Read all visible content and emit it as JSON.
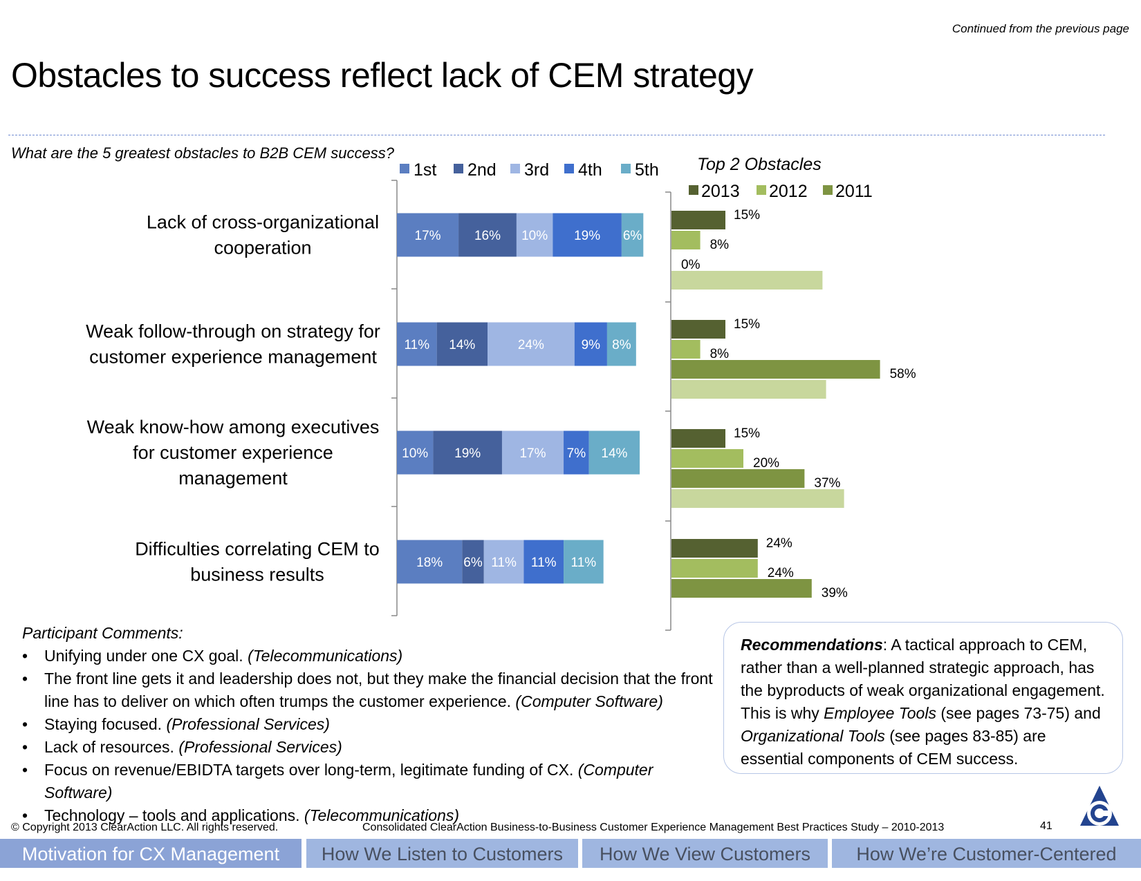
{
  "header": {
    "continued": "Continued from the previous page",
    "title": "Obstacles to success reflect lack of CEM strategy",
    "question": "What are the 5 greatest obstacles to B2B CEM success?"
  },
  "chart_data": [
    {
      "type": "bar",
      "orientation": "horizontal",
      "stacked": true,
      "categories": [
        "Lack of cross-organizational cooperation",
        "Weak follow-through on strategy for customer experience management",
        "Weak know-how among executives for customer experience management",
        "Difficulties correlating CEM to business results"
      ],
      "series": [
        {
          "name": "1st",
          "color": "#5b7ec1",
          "values": [
            17,
            11,
            10,
            18
          ]
        },
        {
          "name": "2nd",
          "color": "#45619c",
          "values": [
            16,
            14,
            19,
            6
          ]
        },
        {
          "name": "3rd",
          "color": "#9fb6e3",
          "values": [
            10,
            24,
            17,
            11
          ]
        },
        {
          "name": "4th",
          "color": "#3f6fcd",
          "values": [
            19,
            9,
            7,
            11
          ]
        },
        {
          "name": "5th",
          "color": "#6aadc8",
          "values": [
            6,
            8,
            14,
            11
          ]
        }
      ],
      "labels": [
        [
          "17%",
          "16%",
          "10%",
          "19%",
          "6%"
        ],
        [
          "11%",
          "14%",
          "24%",
          "9%",
          "8%"
        ],
        [
          "10%",
          "19%",
          "17%",
          "7%",
          "14%"
        ],
        [
          "18%",
          "6%",
          "11%",
          "11%",
          "11%"
        ]
      ],
      "label_lines": [
        [
          "Lack of cross-organizational",
          "cooperation"
        ],
        [
          "Weak follow-through on strategy for",
          "customer experience management"
        ],
        [
          "Weak know-how among executives",
          "for customer experience",
          "management"
        ],
        [
          "Difficulties correlating CEM to",
          "business results"
        ]
      ],
      "legend_position": "top"
    },
    {
      "type": "bar",
      "orientation": "horizontal",
      "title": "Top 2 Obstacles",
      "categories": [
        "Lack of cross-organizational cooperation",
        "Weak follow-through on strategy for customer experience management",
        "Weak know-how among executives for customer experience management",
        "Difficulties correlating CEM to business results"
      ],
      "series": [
        {
          "name": "2013",
          "color": "#556131",
          "values": [
            15,
            15,
            15,
            24
          ],
          "labels": [
            "15%",
            "15%",
            "15%",
            "24%"
          ]
        },
        {
          "name": "2012",
          "color": "#a3bd5f",
          "values": [
            8,
            8,
            20,
            24
          ],
          "labels": [
            "8%",
            "8%",
            "20%",
            "24%"
          ]
        },
        {
          "name": "2011",
          "color": "#7e9442",
          "values": [
            0,
            58,
            37,
            39
          ],
          "labels": [
            "0%",
            "58%",
            "37%",
            "39%"
          ]
        }
      ],
      "extra_bar": {
        "color": "#c8d79d",
        "values": [
          42,
          43,
          48,
          null
        ]
      },
      "legend_position": "top"
    }
  ],
  "comments": {
    "heading": "Participant Comments:",
    "items": [
      {
        "text": "Unifying under one CX goal. ",
        "source": "(Telecommunications)"
      },
      {
        "text": "The front line gets it and leadership does not, but they make the financial decision that the front line has to deliver on which often trumps the customer experience. ",
        "source": "(Computer Software)"
      },
      {
        "text": "Staying focused. ",
        "source": "(Professional Services)"
      },
      {
        "text": "Lack of resources. ",
        "source": "(Professional Services)"
      },
      {
        "text": "Focus on revenue/EBIDTA targets over long-term, legitimate funding of CX. ",
        "source": "(Computer Software)"
      },
      {
        "text": "Technology –  tools and applications. ",
        "source": "(Telecommunications)"
      }
    ]
  },
  "recommendations": {
    "label": "Recommendations",
    "part1": ": A tactical approach to CEM, rather than a well-planned strategic approach, has the byproducts of weak organizational engagement. This is why ",
    "employee_tools": "Employee Tools",
    "part2": " (see pages 73-75) and ",
    "organizational_tools": "Organizational Tools",
    "part3": " (see pages 83-85) are essential components of CEM success."
  },
  "footer": {
    "copyright": "© Copyright 2013 ClearAction LLC. All rights reserved.",
    "study": "Consolidated ClearAction Business-to-Business Customer Experience Management Best Practices Study – 2010-2013",
    "page": "41"
  },
  "nav": {
    "items": [
      {
        "label": "Motivation for CX Management"
      },
      {
        "label": "How We Listen to Customers"
      },
      {
        "label": "How We View Customers"
      },
      {
        "label": "How We’re Customer-Centered"
      }
    ]
  }
}
